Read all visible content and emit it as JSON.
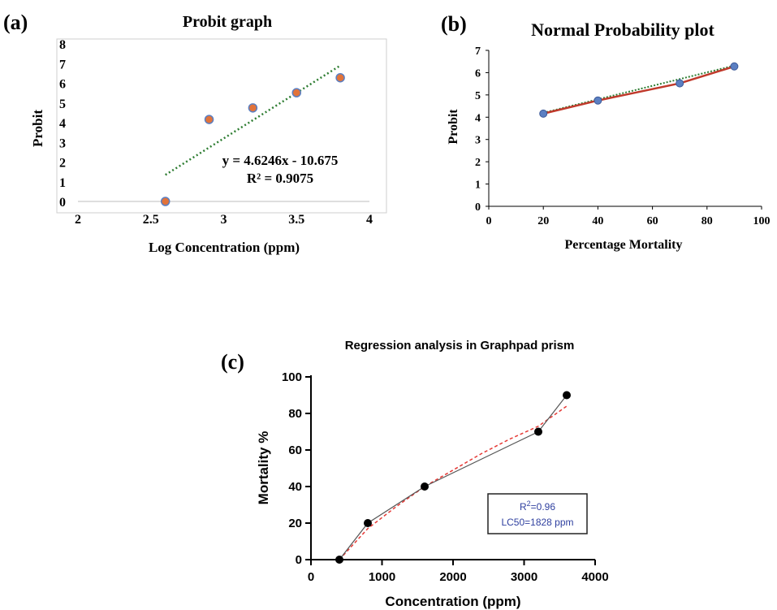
{
  "colors": {
    "marker_orange": "#E2733A",
    "marker_blue": "#5B7FC2",
    "trend_green": "#2E7D32",
    "line_red": "#C0392B",
    "box_blue": "#2E3F9F",
    "plot_border": "#CFCFCF"
  },
  "chart_data": [
    {
      "type": "scatter",
      "panel_label": "(a)",
      "title": "Probit graph",
      "xlabel": "Log Concentration (ppm)",
      "ylabel": "Probit",
      "xlim": [
        2,
        4
      ],
      "ylim": [
        0,
        8
      ],
      "xticks": [
        "2",
        "2.5",
        "3",
        "3.5",
        "4"
      ],
      "yticks": [
        "0",
        "1",
        "2",
        "3",
        "4",
        "5",
        "6",
        "7",
        "8"
      ],
      "points": [
        {
          "x": 2.6,
          "y": 0
        },
        {
          "x": 2.9,
          "y": 4.16
        },
        {
          "x": 3.2,
          "y": 4.75
        },
        {
          "x": 3.5,
          "y": 5.52
        },
        {
          "x": 3.8,
          "y": 6.28
        }
      ],
      "trendline": {
        "type": "linear",
        "x_range": [
          2.6,
          3.8
        ]
      },
      "equation": "y = 4.6246x - 10.675",
      "r_squared": "R² = 0.9075",
      "grid": false,
      "legend": "none"
    },
    {
      "type": "line",
      "panel_label": "(b)",
      "title": "Normal Probability plot",
      "xlabel": "Percentage Mortality",
      "ylabel": "Probit",
      "xlim": [
        0,
        100
      ],
      "ylim": [
        0,
        7
      ],
      "xticks": [
        "0",
        "20",
        "40",
        "60",
        "80",
        "100"
      ],
      "yticks": [
        "0",
        "1",
        "2",
        "3",
        "4",
        "5",
        "6",
        "7"
      ],
      "points": [
        {
          "x": 20,
          "y": 4.16
        },
        {
          "x": 40,
          "y": 4.75
        },
        {
          "x": 70,
          "y": 5.52
        },
        {
          "x": 90,
          "y": 6.28
        }
      ],
      "grid": false,
      "legend": "none"
    },
    {
      "type": "line",
      "panel_label": "(c)",
      "title": "Regression analysis in Graphpad prism",
      "xlabel": "Concentration (ppm)",
      "ylabel": "Mortality %",
      "xlim": [
        0,
        4000
      ],
      "ylim": [
        0,
        100
      ],
      "xticks": [
        "0",
        "1000",
        "2000",
        "3000",
        "4000"
      ],
      "yticks": [
        "0",
        "20",
        "40",
        "60",
        "80",
        "100"
      ],
      "points": [
        {
          "x": 400,
          "y": 0
        },
        {
          "x": 800,
          "y": 20
        },
        {
          "x": 1600,
          "y": 40
        },
        {
          "x": 3200,
          "y": 70
        },
        {
          "x": 3600,
          "y": 90
        }
      ],
      "fit_curve": [
        {
          "x": 400,
          "y": 0
        },
        {
          "x": 800,
          "y": 17
        },
        {
          "x": 1200,
          "y": 29
        },
        {
          "x": 1600,
          "y": 40
        },
        {
          "x": 2000,
          "y": 49
        },
        {
          "x": 2400,
          "y": 58
        },
        {
          "x": 2800,
          "y": 66
        },
        {
          "x": 3200,
          "y": 73
        },
        {
          "x": 3600,
          "y": 84
        }
      ],
      "annotation_r2_prefix": "R",
      "annotation_r2_sup": "2",
      "annotation_r2_value": "=0.96",
      "annotation_lc50": "LC50=1828 ppm",
      "grid": false,
      "legend": "none"
    }
  ]
}
